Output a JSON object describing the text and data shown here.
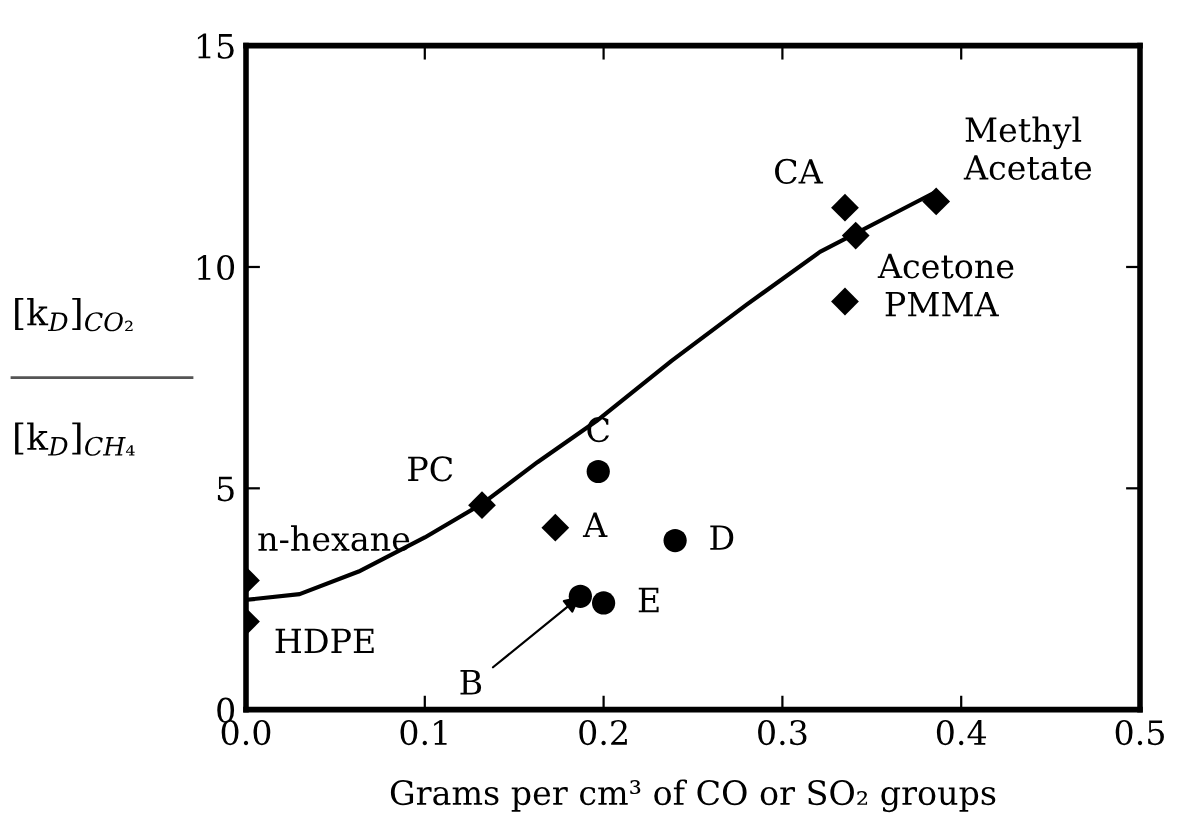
{
  "chart_data": {
    "type": "scatter",
    "xlabel": "Grams per cm³ of CO or SO₂ groups",
    "ylabel": "[k$_{D}$]$_{CO₂}$\n[k$_{D}$]$_{CH₄}$",
    "xlim": [
      0,
      0.5
    ],
    "ylim": [
      0,
      15
    ],
    "xticks": [
      {
        "value": 0,
        "label": "0.0"
      },
      {
        "value": 0.1,
        "label": "0.1"
      },
      {
        "value": 0.2,
        "label": "0.2"
      },
      {
        "value": 0.3,
        "label": "0.3"
      },
      {
        "value": 0.4,
        "label": "0.4"
      },
      {
        "value": 0.5,
        "label": "0.5"
      }
    ],
    "yticks": [
      0,
      5,
      10,
      15
    ],
    "grid": false,
    "legend": false,
    "series": [
      {
        "marker": "diamond",
        "color": "#000000",
        "x": [
          0,
          0,
          0.132,
          0.173,
          0.335,
          0.341,
          0.335,
          0.386
        ],
        "values": [
          2.92,
          1.99,
          4.62,
          4.11,
          11.34,
          10.71,
          9.22,
          11.48
        ]
      },
      {
        "marker": "circle",
        "color": "#000000",
        "x": [
          0.197,
          0.24,
          0.187,
          0.2
        ],
        "values": [
          5.38,
          3.82,
          2.56,
          2.41
        ]
      },
      {
        "type": "line",
        "marker": "none",
        "line_style": "solid",
        "color": "#000000",
        "x": [
          0,
          0.03,
          0.063,
          0.1,
          0.132,
          0.163,
          0.196,
          0.238,
          0.28,
          0.321,
          0.363,
          0.386
        ],
        "values": [
          2.48,
          2.61,
          3.12,
          3.89,
          4.65,
          5.59,
          6.52,
          7.88,
          9.15,
          10.34,
          11.22,
          11.7
        ]
      }
    ],
    "annotations": [
      {
        "text": "n-hexane",
        "x": 0,
        "y": 2.92
      },
      {
        "text": "HDPE",
        "x": 0,
        "y": 1.99
      },
      {
        "text": "PC",
        "x": 0.132,
        "y": 4.62
      },
      {
        "text": "A",
        "x": 0.173,
        "y": 4.11
      },
      {
        "text": "CA",
        "x": 0.335,
        "y": 11.34
      },
      {
        "text": "Acetone",
        "x": 0.341,
        "y": 10.71
      },
      {
        "text": "PMMA",
        "x": 0.335,
        "y": 9.22
      },
      {
        "text": "Methyl\nAcetate",
        "x": 0.386,
        "y": 11.48
      },
      {
        "text": "C",
        "x": 0.197,
        "y": 5.38
      },
      {
        "text": "D",
        "x": 0.24,
        "y": 3.82
      },
      {
        "text": "B",
        "x": 0.187,
        "y": 2.56
      },
      {
        "text": "E",
        "x": 0.2,
        "y": 2.41
      }
    ]
  }
}
